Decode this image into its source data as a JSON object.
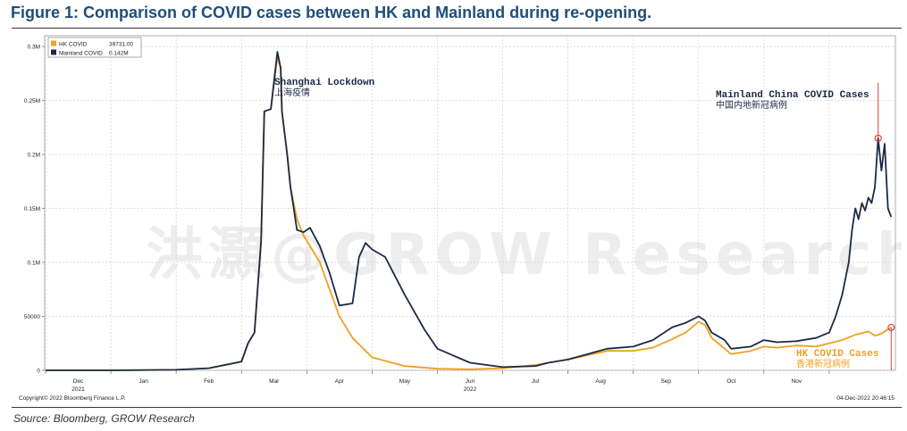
{
  "figure_title": "Figure 1: Comparison of COVID cases between HK and Mainland during re-opening.",
  "source": "Source: Bloomberg, GROW Research",
  "watermark": "洪灝@GROW Research",
  "copyright": "Copyright© 2022 Bloomberg Finance L.P.",
  "timestamp": "04-Dec-2022 20:46:15",
  "colors": {
    "hk": "#f0a020",
    "mainland": "#1b2a44",
    "marker": "#e04040",
    "grid": "#d0d0d0"
  },
  "annotations": {
    "shanghai_en": "Shanghai Lockdown",
    "shanghai_cn": "上海疫情",
    "mainland_en": "Mainland China COVID Cases",
    "mainland_cn": "中国内地新冠病例",
    "hk_en": "HK COVID Cases",
    "hk_cn": "香港新冠病例"
  },
  "chart_data": {
    "type": "line",
    "title": "Comparison of COVID cases between HK and Mainland during re-opening",
    "xlabel": "",
    "ylabel": "",
    "ylim": [
      0,
      310000
    ],
    "y_ticks": [
      0,
      50000,
      100000,
      150000,
      200000,
      250000,
      300000
    ],
    "y_tick_labels": [
      "0",
      "50000",
      "0.1M",
      "0.15M",
      "0.2M",
      "0.25M",
      "0.3M"
    ],
    "xlim": [
      0,
      13
    ],
    "x_ticks": [
      0.5,
      1.5,
      2.5,
      3.5,
      4.5,
      5.5,
      6.5,
      7.5,
      8.5,
      9.5,
      10.5,
      11.5
    ],
    "x_tick_labels": [
      "Dec",
      "Jan",
      "Feb",
      "Mar",
      "Apr",
      "May",
      "Jun",
      "Jul",
      "Aug",
      "Sep",
      "Oct",
      "Nov"
    ],
    "year_labels": [
      {
        "x": 0.5,
        "label": "2021"
      },
      {
        "x": 6.5,
        "label": "2022"
      }
    ],
    "legend": [
      {
        "name": "HK COVID",
        "value": "39731.00"
      },
      {
        "name": "Mainland COVID",
        "value": "0.142M"
      }
    ],
    "legend_position": "top-left",
    "series": [
      {
        "name": "HK COVID",
        "x": [
          0,
          1,
          2,
          2.5,
          3.0,
          3.1,
          3.2,
          3.3,
          3.35,
          3.45,
          3.55,
          3.6,
          3.62,
          3.7,
          3.75,
          3.8,
          3.85,
          3.95,
          4.05,
          4.2,
          4.35,
          4.5,
          4.7,
          5,
          5.5,
          6,
          6.5,
          7,
          7.5,
          7.7,
          8,
          8.3,
          8.6,
          9,
          9.3,
          9.6,
          9.8,
          10.0,
          10.1,
          10.2,
          10.4,
          10.5,
          10.8,
          11,
          11.2,
          11.5,
          11.8,
          12.0,
          12.2,
          12.4,
          12.6,
          12.7,
          12.8,
          12.9,
          12.95
        ],
        "values": [
          0,
          0,
          500,
          2000,
          8000,
          25000,
          35000,
          120000,
          240000,
          242000,
          290000,
          280000,
          240000,
          200000,
          170000,
          155000,
          140000,
          125000,
          115000,
          100000,
          75000,
          50000,
          30000,
          12000,
          4000,
          1500,
          1000,
          2000,
          5000,
          7000,
          10000,
          14000,
          18000,
          18000,
          21000,
          29000,
          35000,
          45000,
          42000,
          30000,
          20000,
          15000,
          18000,
          22000,
          21000,
          23000,
          22000,
          25000,
          28000,
          33000,
          36000,
          32000,
          34000,
          38000,
          39731
        ]
      },
      {
        "name": "Mainland COVID",
        "x": [
          0,
          1,
          2,
          2.5,
          3.0,
          3.1,
          3.2,
          3.3,
          3.35,
          3.45,
          3.55,
          3.6,
          3.62,
          3.7,
          3.75,
          3.8,
          3.85,
          3.95,
          4.05,
          4.2,
          4.35,
          4.5,
          4.7,
          4.8,
          4.9,
          5.0,
          5.2,
          5.5,
          5.8,
          6,
          6.5,
          7,
          7.5,
          7.7,
          8,
          8.3,
          8.6,
          9,
          9.3,
          9.6,
          9.8,
          10.0,
          10.1,
          10.2,
          10.4,
          10.5,
          10.8,
          11,
          11.2,
          11.5,
          11.8,
          12.0,
          12.1,
          12.2,
          12.3,
          12.35,
          12.4,
          12.45,
          12.5,
          12.55,
          12.6,
          12.65,
          12.7,
          12.75,
          12.8,
          12.85,
          12.9,
          12.95
        ],
        "values": [
          0,
          0,
          500,
          2000,
          8000,
          25000,
          35000,
          120000,
          240000,
          242000,
          295000,
          280000,
          240000,
          200000,
          170000,
          150000,
          130000,
          128000,
          132000,
          115000,
          90000,
          60000,
          62000,
          105000,
          118000,
          112000,
          105000,
          70000,
          38000,
          20000,
          7000,
          3000,
          4000,
          7000,
          10000,
          15000,
          20000,
          22000,
          28000,
          40000,
          44000,
          50000,
          46000,
          35000,
          28000,
          20000,
          22000,
          28000,
          26000,
          27000,
          30000,
          35000,
          50000,
          70000,
          100000,
          130000,
          150000,
          140000,
          155000,
          148000,
          160000,
          155000,
          170000,
          215000,
          185000,
          210000,
          150000,
          142000
        ]
      }
    ]
  }
}
